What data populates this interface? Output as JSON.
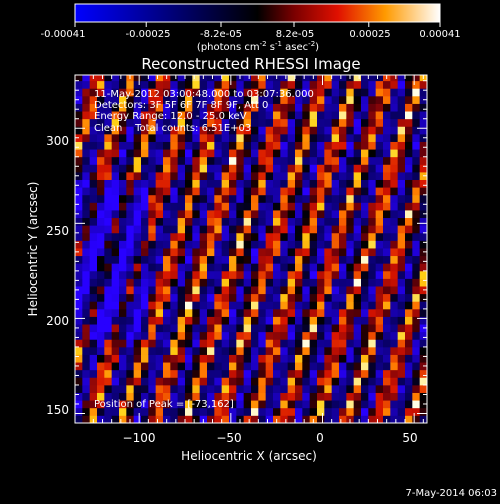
{
  "colorbar": {
    "tick_labels": [
      "-0.00041",
      "-0.00025",
      "-8.2e-05",
      "8.2e-05",
      "0.00025",
      "0.00041"
    ],
    "unit_label": "(photons cm",
    "unit_exp1": "-2",
    "unit_mid": " s",
    "unit_exp2": "-1",
    "unit_tail": " asec",
    "unit_exp3": "-2",
    "unit_close": ")",
    "range": [
      -0.00041,
      0.00041
    ]
  },
  "chart_data": {
    "type": "heatmap",
    "title": "Reconstructed RHESSI Image",
    "xlabel": "Heliocentric X (arcsec)",
    "ylabel": "Heliocentric Y (arcsec)",
    "xlim": [
      -135,
      57
    ],
    "ylim": [
      145,
      328
    ],
    "xticks": [
      -100,
      -50,
      0,
      50
    ],
    "yticks": [
      150,
      200,
      250,
      300
    ],
    "xtick_labels": [
      "−100",
      "−50",
      "0",
      "50"
    ],
    "ytick_labels": [
      "150",
      "200",
      "250",
      "300"
    ],
    "colormap": "red-temperature",
    "value_range": [
      -0.00041,
      0.00041
    ],
    "pattern": "diagonal stripes",
    "annotations": [
      "11-May-2012 03:00:48.000 to 03:07:36.000",
      "Detectors: 3F 5F 6F 7F 8F 9F, Att 0",
      "Energy Range: 12.0 - 25.0 keV",
      "Clean    Total counts: 6.51E+03"
    ],
    "peak_label": "Position of Peak = [-73,162]",
    "peak_position": [
      -73,
      162
    ]
  },
  "footer": {
    "date": "7-May-2014 06:03"
  }
}
